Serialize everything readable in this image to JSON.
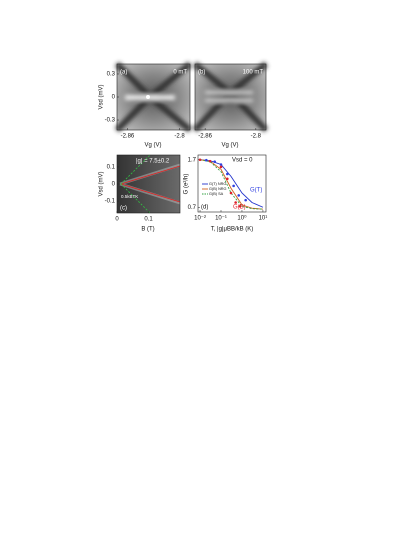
{
  "chart_data": [
    {
      "type": "image",
      "panel_label": "(a)",
      "annotations": [
        "0 mT"
      ],
      "xlabel": "Vg (V)",
      "ylabel": "Vsd (mV)",
      "xlim": [
        -2.872,
        -2.788
      ],
      "xticks": [
        -2.86,
        -2.8
      ],
      "ylim": [
        -0.43,
        0.43
      ],
      "yticks": [
        0.3,
        0,
        -0.3
      ]
    },
    {
      "type": "image",
      "panel_label": "(b)",
      "annotations": [
        "100 mT"
      ],
      "xlabel": "Vg (V)",
      "xlim": [
        -2.872,
        -2.788
      ],
      "xticks": [
        -2.86,
        -2.8
      ]
    },
    {
      "type": "image",
      "panel_label": "(c)",
      "annotations": [
        "|g| = 7.5±0.2",
        "0.5kBTK"
      ],
      "xlabel": "B (T)",
      "ylabel": "Vsd (mV)",
      "xlim": [
        0,
        0.2
      ],
      "xticks": [
        0,
        0.1
      ],
      "ylim": [
        -0.17,
        0.17
      ],
      "yticks": [
        0.1,
        0,
        -0.1
      ]
    },
    {
      "type": "line",
      "panel_label": "(d)",
      "annotations": [
        "Vsd = 0"
      ],
      "xlabel": "T, |g|μBB/kB (K)",
      "ylabel": "G (e²/h)",
      "xscale": "log",
      "xlim": [
        0.008,
        14
      ],
      "xticks": [
        {
          "value": 0.01,
          "label": "10⁻²"
        },
        {
          "value": 0.1,
          "label": "10⁻¹"
        },
        {
          "value": 1,
          "label": "10⁰"
        },
        {
          "value": 10,
          "label": "10¹"
        }
      ],
      "ylim": [
        0.6,
        1.8
      ],
      "yticks": [
        1.7,
        0.7
      ],
      "series": [
        {
          "name": "G(T) NRG",
          "color": "#2233cc",
          "style": "line",
          "x": [
            0.01,
            0.03,
            0.1,
            0.3,
            1,
            3,
            10
          ],
          "values": [
            1.7,
            1.68,
            1.6,
            1.35,
            1.0,
            0.8,
            0.7
          ]
        },
        {
          "name": "G(B) NRG",
          "color": "#d2601e",
          "style": "line",
          "x": [
            0.01,
            0.03,
            0.1,
            0.3,
            1,
            3,
            10
          ],
          "values": [
            1.7,
            1.67,
            1.5,
            1.1,
            0.75,
            0.68,
            0.66
          ]
        },
        {
          "name": "G(B) SA",
          "color": "#30a040",
          "style": "line",
          "dash": true,
          "x": [
            0.01,
            0.03,
            0.1,
            0.3,
            1,
            3,
            10
          ],
          "values": [
            1.7,
            1.66,
            1.45,
            1.0,
            0.72,
            0.67,
            0.66
          ]
        },
        {
          "name": "G(T)",
          "color": "#3040e0",
          "style": "points",
          "x": [
            0.02,
            0.05,
            0.1,
            0.2,
            0.4,
            0.7,
            1.5
          ],
          "values": [
            1.69,
            1.66,
            1.6,
            1.4,
            1.15,
            0.95,
            0.85
          ]
        },
        {
          "name": "G(B)",
          "color": "#e0202a",
          "style": "points",
          "x": [
            0.01,
            0.03,
            0.1,
            0.2,
            0.3,
            0.5,
            0.8
          ],
          "values": [
            1.7,
            1.67,
            1.55,
            1.3,
            1.0,
            0.8,
            0.72
          ]
        }
      ]
    }
  ]
}
